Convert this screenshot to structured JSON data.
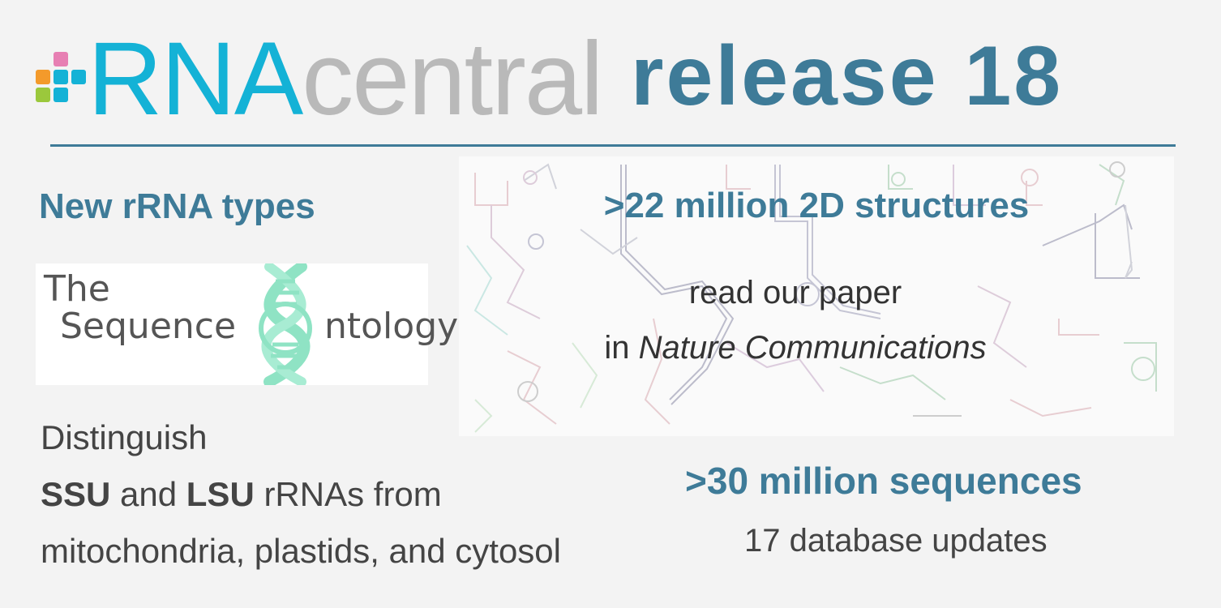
{
  "header": {
    "brand_rna": "RNA",
    "brand_central": "central",
    "release_title": "release 18",
    "logo_colors": [
      "#f39a2b",
      "#e77fb3",
      "#14b2d6",
      "#9bc83c"
    ]
  },
  "left": {
    "title": "New rRNA types",
    "so_logo": {
      "line1": "The",
      "line2": "Sequence",
      "line3": "ntology"
    },
    "desc_line1": "Distinguish",
    "desc_ssu": "SSU",
    "desc_and": " and ",
    "desc_lsu": "LSU",
    "desc_rest": " rRNAs from",
    "desc_line3": "mitochondria, plastids, and cytosol"
  },
  "right": {
    "structures_title": ">22 million 2D structures",
    "paper_line1": "read our paper",
    "paper_in": "in ",
    "paper_journal": "Nature Communications",
    "sequences_title": ">30 million sequences",
    "updates": "17 database updates"
  },
  "colors": {
    "accent": "#3e7b98",
    "brand_blue": "#14b2d6",
    "brand_gray": "#b9b9b9",
    "dna": "#8fe3c4"
  }
}
